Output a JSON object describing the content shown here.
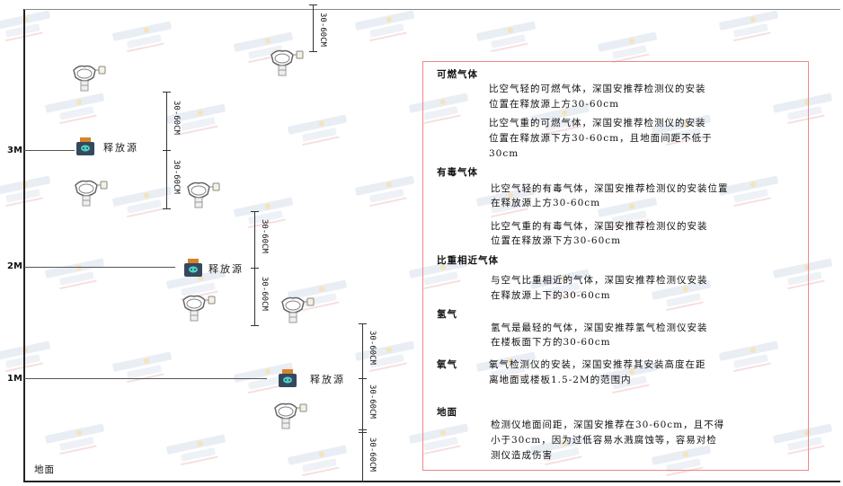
{
  "watermark": {
    "brand": "SINGOAN",
    "cn": "深国安",
    "sub": "联系代码:681434"
  },
  "levels": [
    "3M",
    "2M",
    "1M"
  ],
  "ground_label": "地面",
  "source_label": "释放源",
  "dimension_label": "30-60CM",
  "notes": {
    "flammable": {
      "title": "可燃气体",
      "light": [
        "比空气轻的可燃气体，深国安推荐检测仪的安装",
        "位置在释放源上方30-60cm"
      ],
      "heavy": [
        "比空气重的可燃气体，深国安推荐检测仪的安装",
        "位置在释放源下方30-60cm，且地面间距不低于",
        "30cm"
      ]
    },
    "toxic": {
      "title": "有毒气体",
      "light": [
        "比空气轻的有毒气体，深国安推荐检测仪的安装位置",
        "在释放源上方30-60cm"
      ],
      "heavy": [
        "比空气重的有毒气体，深国安推荐检测仪的安装",
        "位置在释放源下方30-60cm"
      ]
    },
    "similar": {
      "title": "比重相近气体",
      "body": [
        "与空气比重相近的气体，深国安推荐检测仪安装",
        "在释放源上下的30-60cm"
      ]
    },
    "hydrogen": {
      "title": "氢气",
      "body": [
        "氢气是最轻的气体，深国安推荐氢气检测仪安装",
        "在楼板面下方的30-60cm"
      ]
    },
    "oxygen": {
      "title": "氧气",
      "body": [
        "氧气检测仪的安装，深国安推荐其安装高度在距",
        "离地面或楼板1.5-2M的范围内"
      ]
    },
    "ground": {
      "title": "地面",
      "body": [
        "检测仪地面间距，深国安推荐在30-60cm，且不得",
        "小于30cm，因为过低容易水溅腐蚀等，容易对检",
        "测仪造成伤害"
      ]
    }
  },
  "colors": {
    "box_border": "#ee8888",
    "source_body": "#34495e",
    "source_cap": "#d9822b",
    "source_face": "#4fd1c5"
  }
}
